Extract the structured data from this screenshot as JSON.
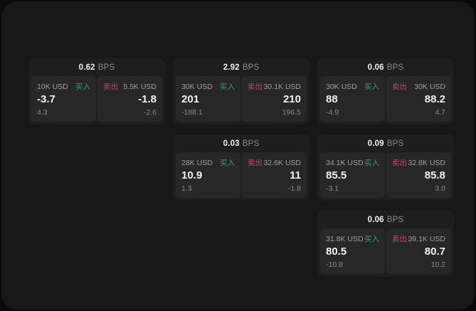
{
  "theme": {
    "page_bg": "#0a0a0a",
    "panel_bg": "#171717",
    "card_bg": "#1e1e1e",
    "tile_bg": "#272727",
    "buy_color": "#3f9e6d",
    "sell_color": "#c04a60",
    "value_color": "#f2f2f2",
    "muted_color": "#a0a0a0",
    "faint_color": "#8a8a8a"
  },
  "labels": {
    "bps_suffix": "BPS",
    "buy": "买入",
    "sell": "卖出"
  },
  "cards": [
    {
      "bps": "0.62",
      "col": 1,
      "row": 1,
      "buy": {
        "amount": "10K USD",
        "value": "-3.7",
        "sub": "4.3"
      },
      "sell": {
        "amount": "5.5K USD",
        "value": "-1.8",
        "sub": "-2.6"
      }
    },
    {
      "bps": "2.92",
      "col": 2,
      "row": 1,
      "buy": {
        "amount": "30K USD",
        "value": "201",
        "sub": "-188.1"
      },
      "sell": {
        "amount": "30.1K USD",
        "value": "210",
        "sub": "196.5"
      }
    },
    {
      "bps": "0.06",
      "col": 3,
      "row": 1,
      "buy": {
        "amount": "30K USD",
        "value": "88",
        "sub": "-4.9"
      },
      "sell": {
        "amount": "30K USD",
        "value": "88.2",
        "sub": "4.7"
      }
    },
    {
      "bps": "0.03",
      "col": 2,
      "row": 2,
      "buy": {
        "amount": "28K USD",
        "value": "10.9",
        "sub": "1.3"
      },
      "sell": {
        "amount": "32.6K USD",
        "value": "11",
        "sub": "-1.8"
      }
    },
    {
      "bps": "0.09",
      "col": 3,
      "row": 2,
      "buy": {
        "amount": "34.1K USD",
        "value": "85.5",
        "sub": "-3.1"
      },
      "sell": {
        "amount": "32.8K USD",
        "value": "85.8",
        "sub": "3.0"
      }
    },
    {
      "bps": "0.06",
      "col": 3,
      "row": 3,
      "buy": {
        "amount": "31.8K USD",
        "value": "80.5",
        "sub": "-10.8"
      },
      "sell": {
        "amount": "39.1K USD",
        "value": "80.7",
        "sub": "10.2"
      }
    }
  ]
}
